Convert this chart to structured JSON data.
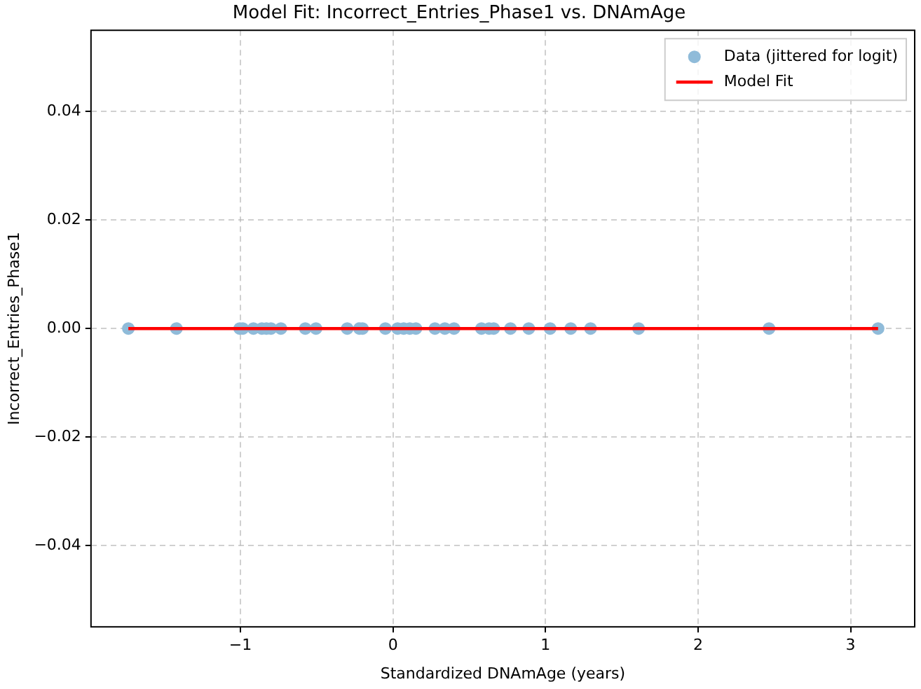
{
  "chart_data": {
    "type": "scatter",
    "title": "Model Fit: Incorrect_Entries_Phase1 vs. DNAmAge",
    "xlabel": "Standardized DNAmAge (years)",
    "ylabel": "Incorrect_Entries_Phase1",
    "series": [
      {
        "name": "Data (jittered for logit)",
        "type": "scatter",
        "color": "#8fbbd9",
        "marker": "circle",
        "x": [
          -1.735,
          -1.42,
          -1.005,
          -0.985,
          -0.915,
          -0.86,
          -0.83,
          -0.8,
          -0.735,
          -0.575,
          -0.505,
          -0.3,
          -0.22,
          -0.2,
          -0.05,
          0.03,
          0.07,
          0.11,
          0.15,
          0.275,
          0.34,
          0.4,
          0.58,
          0.63,
          0.66,
          0.77,
          0.89,
          1.03,
          1.165,
          1.295,
          1.61,
          2.465,
          3.18
        ],
        "values": [
          0,
          0,
          0,
          0,
          0,
          0,
          0,
          0,
          0,
          0,
          0,
          0,
          0,
          0,
          0,
          0,
          0,
          0,
          0,
          0,
          0,
          0,
          0,
          0,
          0,
          0,
          0,
          0,
          0,
          0,
          0,
          0,
          0
        ]
      },
      {
        "name": "Model Fit",
        "type": "line",
        "color": "#ff0000",
        "marker": "none",
        "x": [
          -1.735,
          3.18
        ],
        "values": [
          0,
          0
        ]
      }
    ],
    "xlim": [
      -1.98,
      3.42
    ],
    "xticks": [
      {
        "value": -1,
        "label": "−1"
      },
      0,
      1,
      2,
      3
    ],
    "ylim": [
      -0.055,
      0.055
    ],
    "yticks": [
      {
        "value": -0.04,
        "label": "−0.04"
      },
      {
        "value": -0.02,
        "label": "−0.02"
      },
      {
        "value": 0,
        "label": "0.00"
      },
      {
        "value": 0.02,
        "label": "0.02"
      },
      {
        "value": 0.04,
        "label": "0.04"
      }
    ],
    "grid": true,
    "legend": "top right",
    "line_style": "solid"
  }
}
